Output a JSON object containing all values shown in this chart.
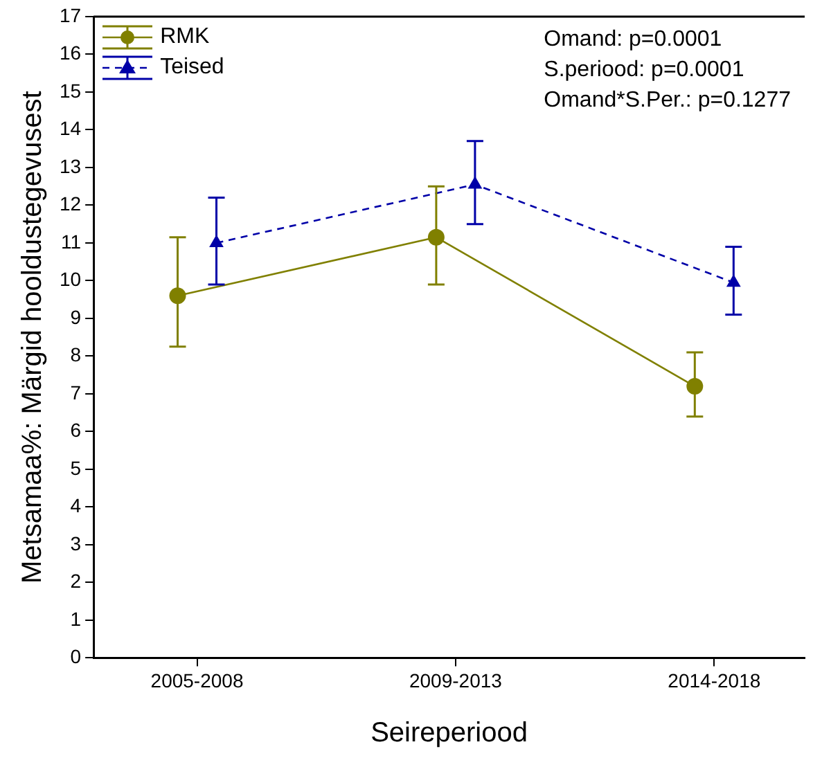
{
  "chart_data": {
    "type": "line",
    "xlabel": "Seireperiood",
    "ylabel": "Metsamaa%: Märgid hooldustegevusest",
    "categories": [
      "2005-2008",
      "2009-2013",
      "2014-2018"
    ],
    "series": [
      {
        "name": "RMK",
        "color": "#808000",
        "values": [
          9.6,
          11.15,
          7.2
        ],
        "errors": [
          [
            8.25,
            11.15
          ],
          [
            9.9,
            12.5
          ],
          [
            6.4,
            8.1
          ]
        ],
        "marker": "circle",
        "line_style": "solid"
      },
      {
        "name": "Teised",
        "color": "#0000a8",
        "values": [
          11.0,
          12.55,
          9.95
        ],
        "errors": [
          [
            9.9,
            12.2
          ],
          [
            11.5,
            13.7
          ],
          [
            9.1,
            10.9
          ]
        ],
        "marker": "triangle",
        "line_style": "dashed"
      }
    ],
    "ylim": [
      0,
      17
    ],
    "yticks": [
      0,
      1,
      2,
      3,
      4,
      5,
      6,
      7,
      8,
      9,
      10,
      11,
      12,
      13,
      14,
      15,
      16,
      17
    ],
    "legend": "top left",
    "grid": false,
    "annotations": [
      "Omand: p=0.0001",
      "S.periood: p=0.0001",
      "Omand*S.Per.: p=0.1277"
    ]
  }
}
